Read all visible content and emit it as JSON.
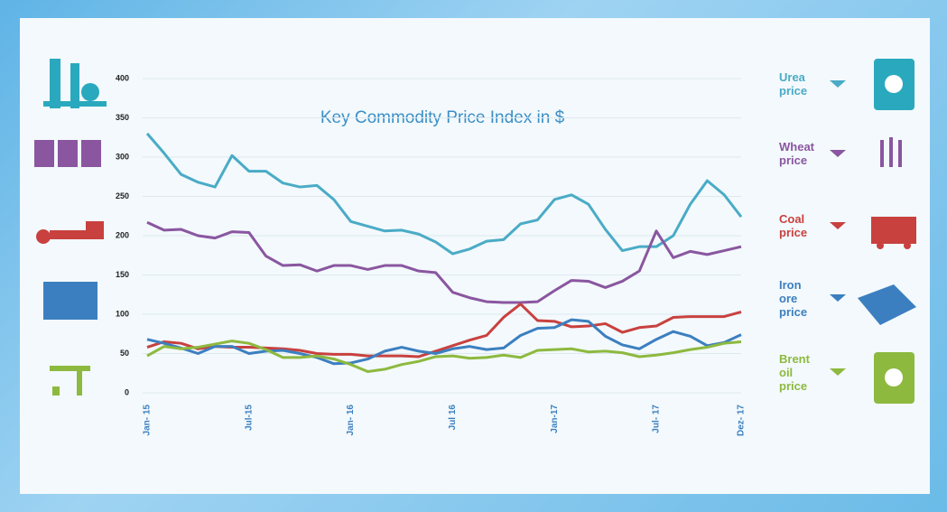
{
  "chart_data": {
    "type": "line",
    "title": "Key Commodity Price Index in $",
    "categories": [
      "Jan- 15",
      null,
      null,
      null,
      null,
      null,
      "Jul-15",
      null,
      null,
      null,
      null,
      null,
      "Jan- 16",
      null,
      null,
      null,
      null,
      null,
      "Jul 16",
      null,
      null,
      null,
      null,
      null,
      "Jan-17",
      null,
      null,
      null,
      null,
      null,
      "Jul- 17",
      null,
      null,
      null,
      null,
      "Dez- 17"
    ],
    "ylim": [
      0,
      400
    ],
    "yticks": [
      0,
      50,
      100,
      150,
      200,
      250,
      300,
      350,
      400
    ],
    "grid": true,
    "series": [
      {
        "name": "Urea price",
        "color": "#4aabc6",
        "values": [
          330,
          305,
          278,
          268,
          262,
          302,
          282,
          282,
          267,
          262,
          264,
          246,
          218,
          212,
          206,
          207,
          202,
          192,
          177,
          183,
          193,
          195,
          215,
          220,
          246,
          252,
          240,
          208,
          181,
          186,
          186,
          200,
          240,
          270,
          252,
          224
        ]
      },
      {
        "name": "Wheat price",
        "color": "#8a56a0",
        "values": [
          217,
          207,
          208,
          200,
          197,
          205,
          204,
          174,
          162,
          163,
          155,
          162,
          162,
          157,
          162,
          162,
          155,
          153,
          128,
          121,
          116,
          115,
          115,
          116,
          130,
          143,
          142,
          134,
          142,
          155,
          206,
          172,
          180,
          176,
          181,
          186
        ]
      },
      {
        "name": "Coal price",
        "color": "#c8413f",
        "values": [
          58,
          65,
          63,
          56,
          59,
          58,
          58,
          57,
          56,
          54,
          50,
          49,
          49,
          47,
          47,
          47,
          46,
          53,
          60,
          67,
          73,
          96,
          113,
          92,
          91,
          84,
          85,
          88,
          77,
          83,
          85,
          96,
          97,
          97,
          97,
          103
        ]
      },
      {
        "name": "Iron ore price",
        "color": "#3c7fc0",
        "values": [
          68,
          63,
          57,
          50,
          59,
          59,
          50,
          53,
          54,
          50,
          45,
          37,
          38,
          43,
          53,
          58,
          53,
          50,
          56,
          59,
          55,
          57,
          73,
          82,
          83,
          93,
          91,
          72,
          61,
          56,
          68,
          78,
          72,
          60,
          64,
          74
        ]
      },
      {
        "name": "Brent oil price",
        "color": "#8db93f",
        "values": [
          47,
          59,
          56,
          58,
          62,
          66,
          63,
          55,
          45,
          45,
          47,
          43,
          36,
          27,
          30,
          36,
          40,
          46,
          47,
          44,
          45,
          48,
          45,
          54,
          55,
          56,
          52,
          53,
          51,
          46,
          48,
          51,
          55,
          58,
          63,
          65
        ]
      }
    ]
  }
}
